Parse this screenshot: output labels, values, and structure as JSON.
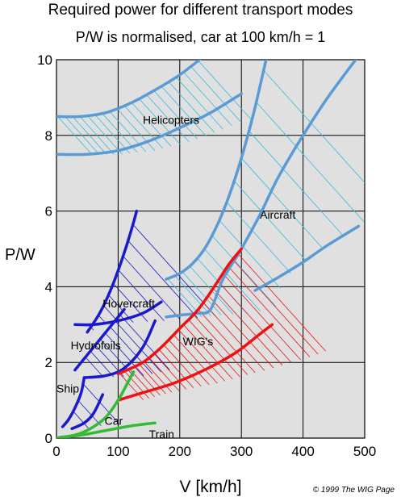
{
  "chart_data": {
    "type": "line",
    "title": "Required power for different transport modes",
    "subtitle": "P/W is normalised, car at 100 km/h = 1",
    "xlabel": "V [km/h]",
    "ylabel": "P/W",
    "xlim": [
      0,
      500
    ],
    "ylim": [
      0,
      10
    ],
    "xticks": [
      0,
      100,
      200,
      300,
      400,
      500
    ],
    "yticks": [
      0,
      2,
      4,
      6,
      8,
      10
    ],
    "grid": true,
    "credit": "© 1999 The WIG Page",
    "colors": {
      "helicopters": "#5b9bd5",
      "aircraft": "#5b9bd5",
      "marine": "#1a1acc",
      "wig": "#ee1111",
      "car": "#33bb33",
      "train": "#33bb33",
      "hatch_light": "#33bbdd",
      "plot_bg": "#e0e0e0"
    },
    "regions": [
      {
        "name": "Helicopters",
        "color": "#5b9bd5",
        "hatch": "#33bbdd",
        "label": "Helicopters",
        "label_at": [
          140,
          8.3
        ],
        "upper": [
          [
            0,
            8.5
          ],
          [
            40,
            8.5
          ],
          [
            80,
            8.6
          ],
          [
            120,
            8.85
          ],
          [
            160,
            9.2
          ],
          [
            200,
            9.6
          ],
          [
            240,
            10.1
          ]
        ],
        "lower": [
          [
            0,
            7.5
          ],
          [
            50,
            7.5
          ],
          [
            100,
            7.6
          ],
          [
            150,
            7.85
          ],
          [
            200,
            8.2
          ],
          [
            250,
            8.6
          ],
          [
            300,
            9.1
          ]
        ]
      },
      {
        "name": "Aircraft",
        "color": "#5b9bd5",
        "hatch": "#33bbdd",
        "label": "Aircraft",
        "label_at": [
          330,
          5.8
        ],
        "upper": [
          [
            178,
            4.2
          ],
          [
            200,
            4.35
          ],
          [
            220,
            4.6
          ],
          [
            240,
            5.0
          ],
          [
            260,
            5.6
          ],
          [
            280,
            6.4
          ],
          [
            300,
            7.4
          ],
          [
            320,
            8.6
          ],
          [
            340,
            10.0
          ]
        ],
        "lower": [
          [
            178,
            3.2
          ],
          [
            200,
            3.25
          ],
          [
            230,
            3.3
          ],
          [
            250,
            3.4
          ],
          [
            270,
            4.2
          ],
          [
            300,
            5.0
          ],
          [
            330,
            5.9
          ],
          [
            360,
            6.9
          ],
          [
            400,
            8.0
          ],
          [
            440,
            9.0
          ],
          [
            490,
            10.1
          ]
        ],
        "lower2": [
          [
            322,
            3.9
          ],
          [
            360,
            4.25
          ],
          [
            400,
            4.65
          ],
          [
            440,
            5.1
          ],
          [
            490,
            5.6
          ]
        ]
      },
      {
        "name": "Hovercraft",
        "color": "#1a1acc",
        "hatch": "#1a1acc",
        "label": "Hovercraft",
        "label_at": [
          75,
          3.45
        ],
        "upper": [
          [
            50,
            2.8
          ],
          [
            70,
            3.3
          ],
          [
            90,
            4.0
          ],
          [
            110,
            4.9
          ],
          [
            125,
            5.7
          ],
          [
            130,
            6.0
          ]
        ],
        "lower": [
          [
            30,
            3.0
          ],
          [
            60,
            3.0
          ],
          [
            100,
            3.1
          ],
          [
            140,
            3.3
          ],
          [
            170,
            3.6
          ]
        ]
      },
      {
        "name": "Hydrofoils",
        "color": "#1a1acc",
        "hatch": "#1a1acc",
        "label": "Hydrofoils",
        "label_at": [
          23,
          2.35
        ],
        "upper": [
          [
            30,
            1.8
          ],
          [
            50,
            2.2
          ],
          [
            70,
            2.6
          ],
          [
            90,
            3.0
          ],
          [
            110,
            3.4
          ]
        ],
        "lower": [
          [
            45,
            1.6
          ],
          [
            80,
            1.65
          ],
          [
            110,
            1.85
          ],
          [
            140,
            2.4
          ],
          [
            160,
            3.1
          ]
        ]
      },
      {
        "name": "Ship",
        "color": "#1a1acc",
        "hatch": "#1a1acc",
        "label": "Ship",
        "label_at": [
          0,
          1.2
        ],
        "upper": [
          [
            10,
            0.3
          ],
          [
            20,
            0.5
          ],
          [
            30,
            0.8
          ],
          [
            40,
            1.2
          ],
          [
            45,
            1.6
          ]
        ],
        "lower": [
          [
            25,
            0.25
          ],
          [
            45,
            0.4
          ],
          [
            60,
            0.65
          ],
          [
            75,
            1.15
          ]
        ]
      },
      {
        "name": "WIG's",
        "color": "#ee1111",
        "hatch": "#ee1111",
        "label": "WIG's",
        "label_at": [
          205,
          2.45
        ],
        "upper": [
          [
            100,
            1.7
          ],
          [
            140,
            2.0
          ],
          [
            170,
            2.4
          ],
          [
            200,
            2.9
          ],
          [
            230,
            3.4
          ],
          [
            260,
            4.1
          ],
          [
            280,
            4.6
          ],
          [
            300,
            5.0
          ]
        ],
        "lower": [
          [
            100,
            1.0
          ],
          [
            140,
            1.2
          ],
          [
            190,
            1.45
          ],
          [
            240,
            1.8
          ],
          [
            290,
            2.25
          ],
          [
            330,
            2.75
          ],
          [
            350,
            3.0
          ]
        ]
      }
    ],
    "series": [
      {
        "name": "Car",
        "color": "#33bb33",
        "label": "Car",
        "label_at": [
          78,
          0.35
        ],
        "values": [
          [
            5,
            0.02
          ],
          [
            30,
            0.08
          ],
          [
            55,
            0.25
          ],
          [
            80,
            0.55
          ],
          [
            100,
            1.0
          ],
          [
            115,
            1.45
          ],
          [
            125,
            1.75
          ]
        ]
      },
      {
        "name": "Train",
        "color": "#33bb33",
        "label": "Train",
        "label_at": [
          150,
          0.0
        ],
        "values": [
          [
            0,
            0.0
          ],
          [
            40,
            0.08
          ],
          [
            80,
            0.2
          ],
          [
            120,
            0.32
          ],
          [
            160,
            0.4
          ]
        ]
      }
    ]
  }
}
